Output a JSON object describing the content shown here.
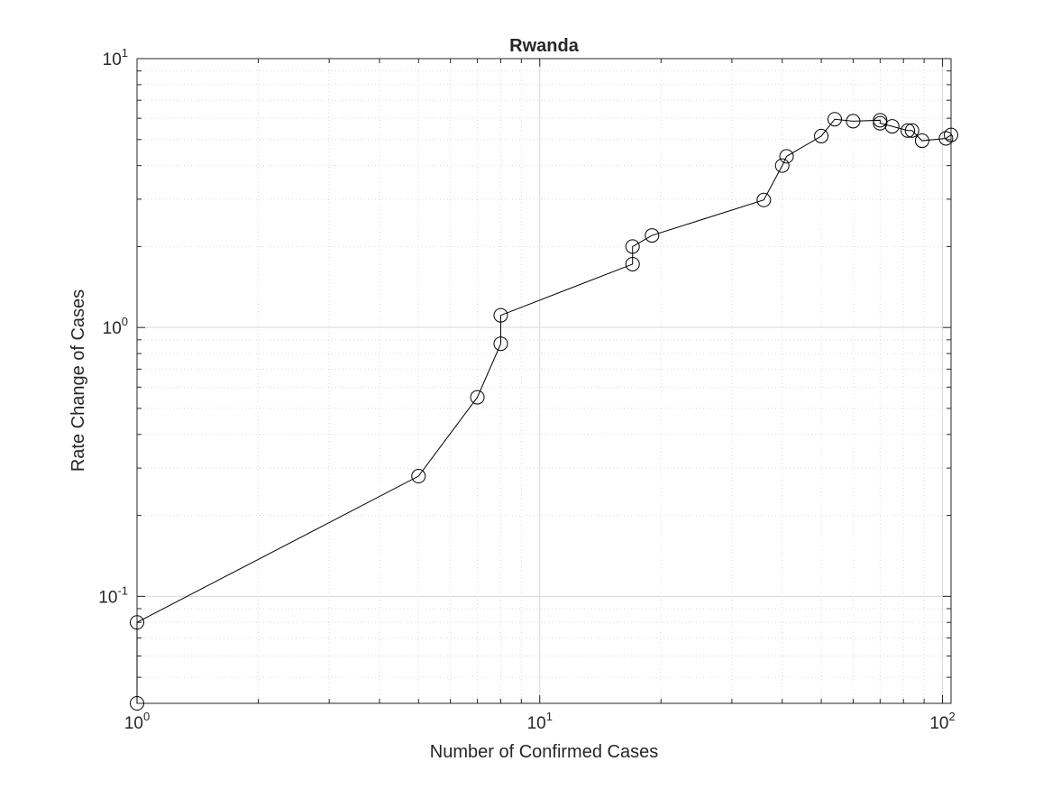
{
  "chart_data": {
    "type": "line",
    "title": "Rwanda",
    "xlabel": "Number of Confirmed Cases",
    "ylabel": "Rate Change of Cases",
    "xscale": "log",
    "yscale": "log",
    "xlim": [
      1,
      105
    ],
    "ylim": [
      0.04,
      10
    ],
    "grid": "on",
    "minor_grid": "on",
    "marker": "open-circle",
    "line_color": "#000000",
    "grid_color": "#d9d9d9",
    "x_ticks": [
      {
        "value": 1,
        "base": "10",
        "exp": "0"
      },
      {
        "value": 10,
        "base": "10",
        "exp": "1"
      },
      {
        "value": 100,
        "base": "10",
        "exp": "2"
      }
    ],
    "y_ticks": [
      {
        "value": 0.1,
        "base": "10",
        "exp": "-1"
      },
      {
        "value": 1,
        "base": "10",
        "exp": "0"
      },
      {
        "value": 10,
        "base": "10",
        "exp": "1"
      }
    ],
    "series": [
      {
        "points": [
          {
            "x": 1,
            "y": 0.04
          },
          {
            "x": 1,
            "y": 0.08
          },
          {
            "x": 5,
            "y": 0.28
          },
          {
            "x": 7,
            "y": 0.55
          },
          {
            "x": 8,
            "y": 0.87
          },
          {
            "x": 8,
            "y": 1.11
          },
          {
            "x": 17,
            "y": 1.72
          },
          {
            "x": 17,
            "y": 2.0
          },
          {
            "x": 19,
            "y": 2.2
          },
          {
            "x": 36,
            "y": 2.98
          },
          {
            "x": 40,
            "y": 4.0
          },
          {
            "x": 41,
            "y": 4.33
          },
          {
            "x": 50,
            "y": 5.15
          },
          {
            "x": 54,
            "y": 5.95
          },
          {
            "x": 60,
            "y": 5.85
          },
          {
            "x": 70,
            "y": 5.9
          },
          {
            "x": 70,
            "y": 5.75
          },
          {
            "x": 75,
            "y": 5.6
          },
          {
            "x": 82,
            "y": 5.4
          },
          {
            "x": 84,
            "y": 5.4
          },
          {
            "x": 89,
            "y": 4.95
          },
          {
            "x": 102,
            "y": 5.05
          },
          {
            "x": 105,
            "y": 5.2
          }
        ]
      }
    ]
  }
}
